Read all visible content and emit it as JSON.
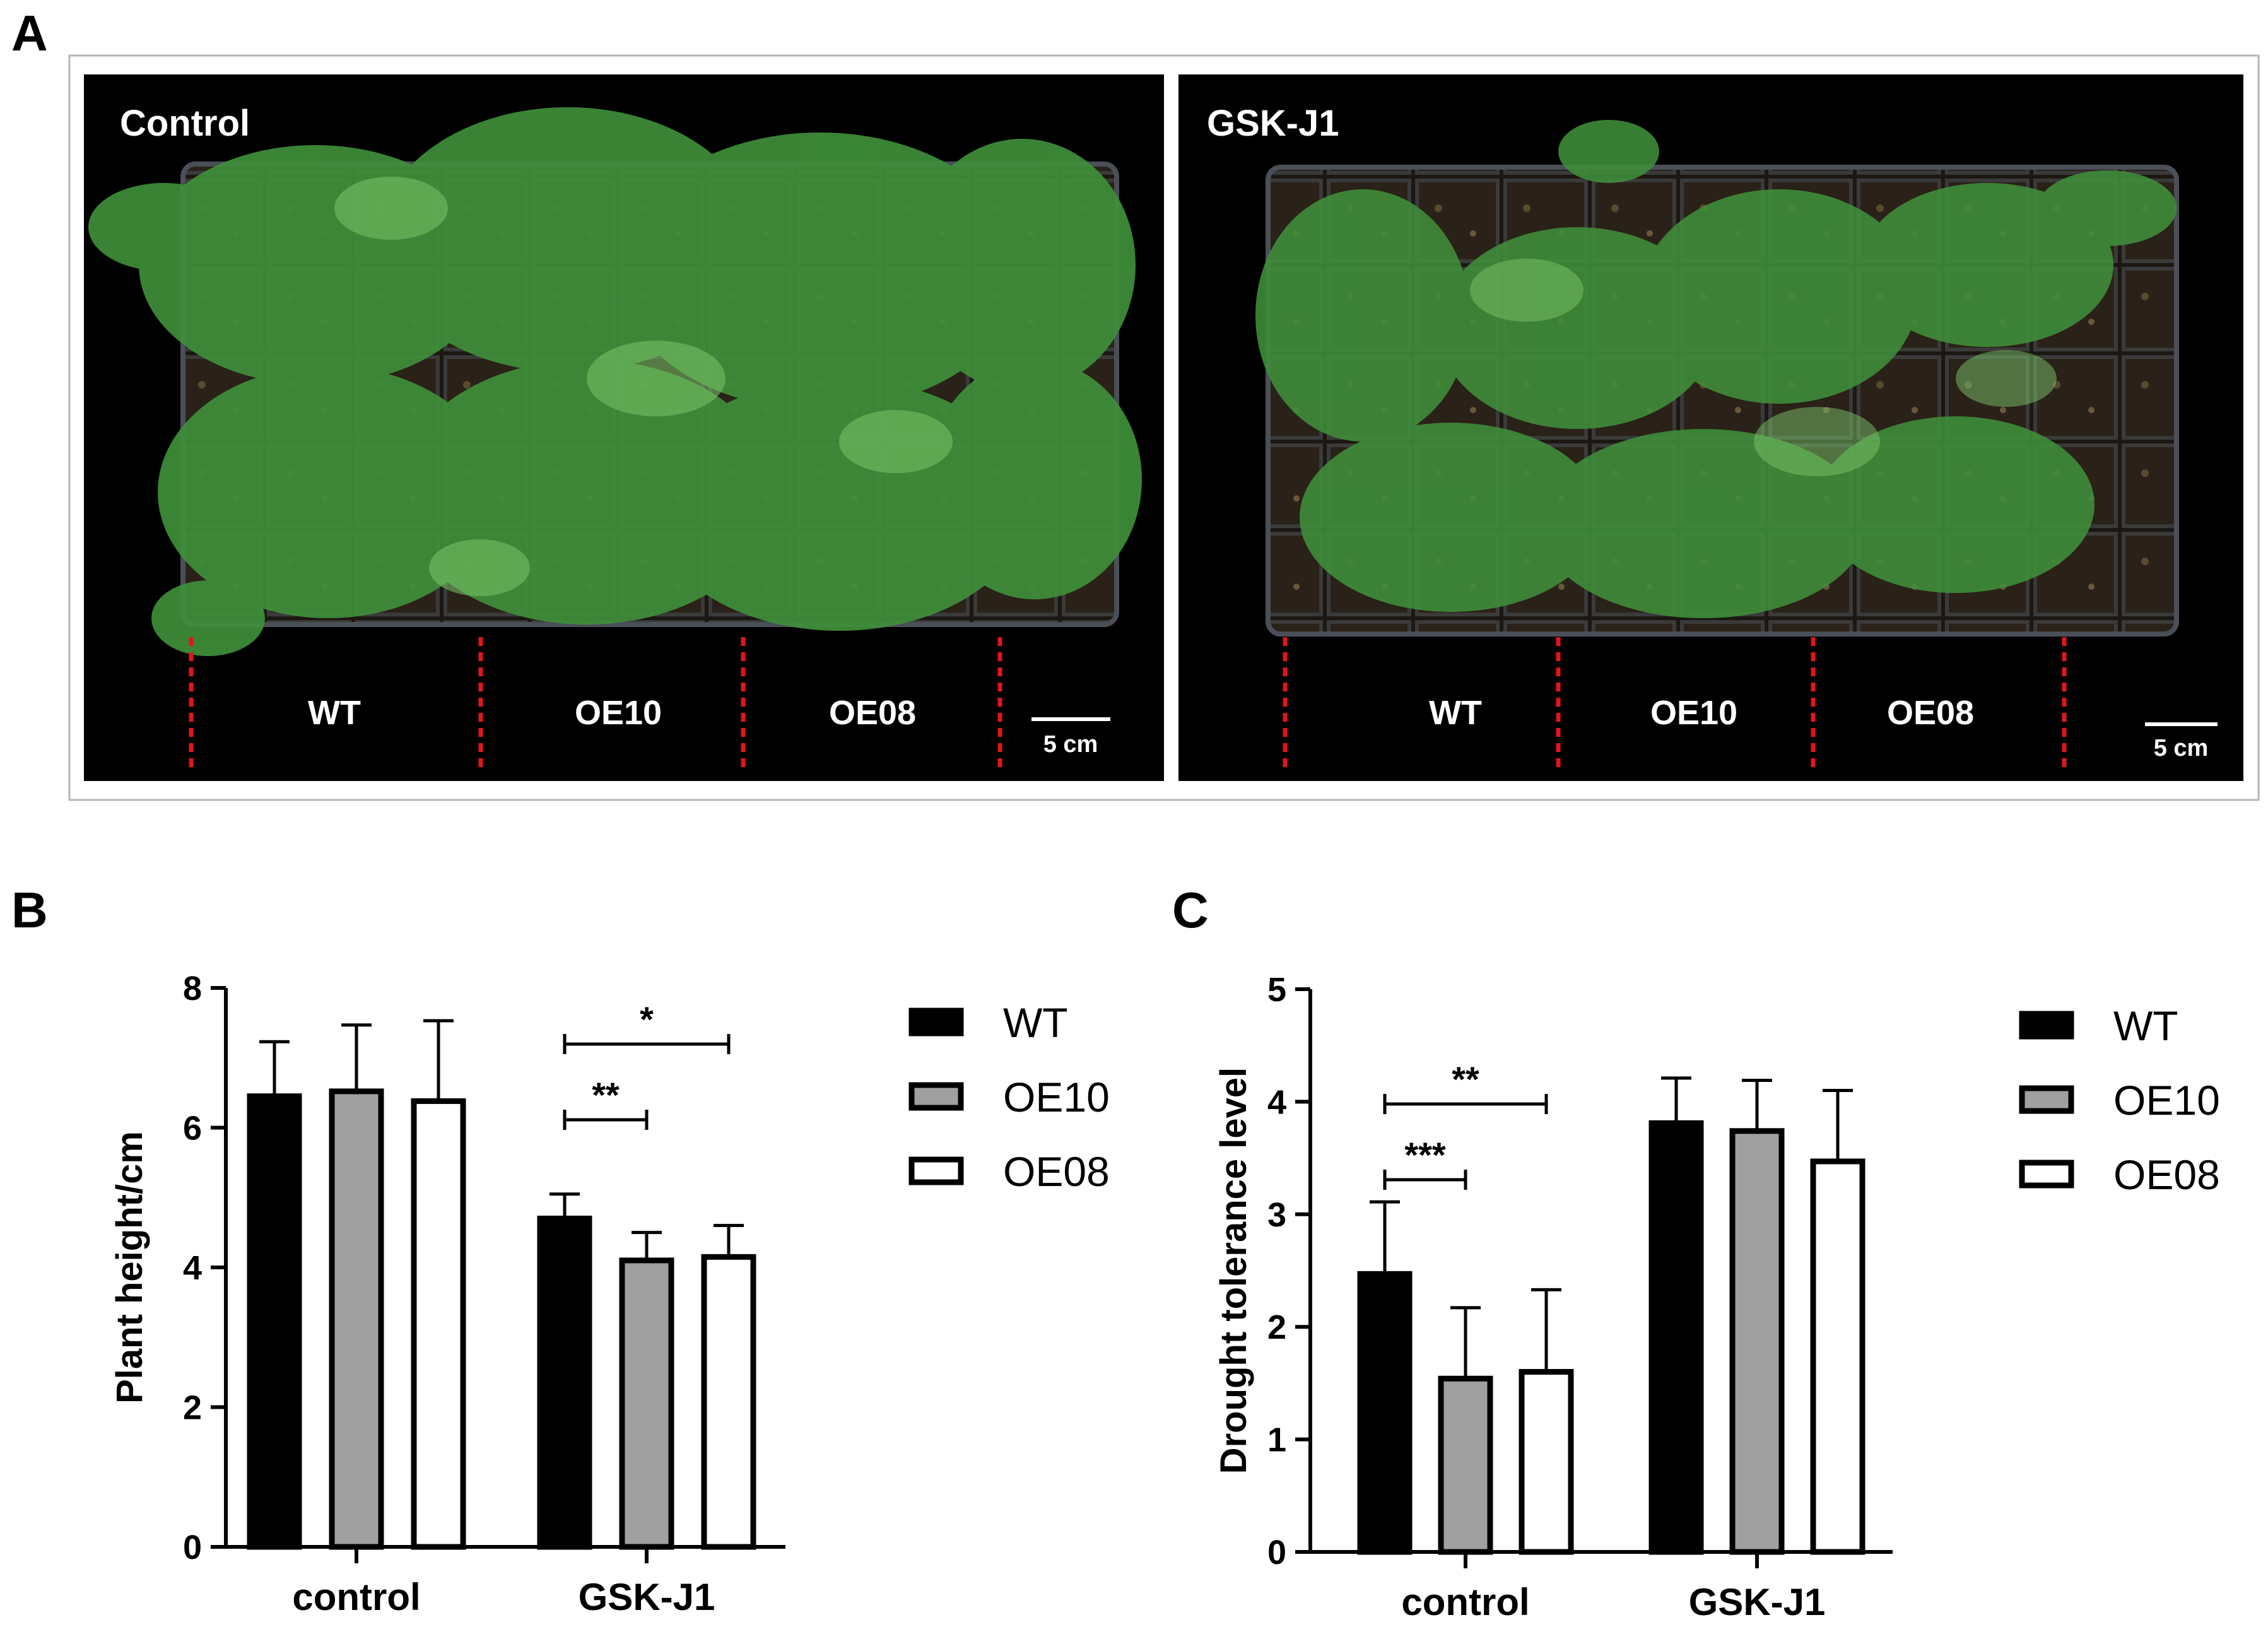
{
  "panels": {
    "a": "A",
    "b": "B",
    "c": "C"
  },
  "photos": [
    {
      "title": "Control",
      "genotypes": [
        "WT",
        "OE10",
        "OE08"
      ],
      "scale": "5 cm"
    },
    {
      "title": "GSK-J1",
      "genotypes": [
        "WT",
        "OE10",
        "OE08"
      ],
      "scale": "5 cm"
    }
  ],
  "colors": {
    "WT": "#000000",
    "OE10": "#a0a0a0",
    "OE08": "#ffffff",
    "photo_bg": "#000000",
    "divider": "#e0161b",
    "foliage": "#3f8f3a"
  },
  "chart_data": [
    {
      "type": "bar",
      "categories": [
        "control",
        "GSK-J1"
      ],
      "ylabel": "Plant height/cm",
      "ylim": [
        0,
        8
      ],
      "yticks": [
        "0",
        "2",
        "4",
        "6",
        "8"
      ],
      "legend": "right",
      "series": [
        {
          "name": "WT",
          "values": [
            6.45,
            4.7
          ],
          "errors": [
            0.78,
            0.35
          ]
        },
        {
          "name": "OE10",
          "values": [
            6.52,
            4.1
          ],
          "errors": [
            0.95,
            0.4
          ]
        },
        {
          "name": "OE08",
          "values": [
            6.38,
            4.15
          ],
          "errors": [
            1.15,
            0.45
          ]
        }
      ],
      "significance": [
        {
          "category": "GSK-J1",
          "from": "WT",
          "to": "OE10",
          "label": "**"
        },
        {
          "category": "GSK-J1",
          "from": "WT",
          "to": "OE08",
          "label": "*"
        }
      ]
    },
    {
      "type": "bar",
      "categories": [
        "control",
        "GSK-J1"
      ],
      "ylabel": "Drought tolerance level",
      "ylim": [
        0,
        5
      ],
      "yticks": [
        "0",
        "1",
        "2",
        "3",
        "4",
        "5"
      ],
      "legend": "right",
      "series": [
        {
          "name": "WT",
          "values": [
            2.47,
            3.81
          ],
          "errors": [
            0.64,
            0.4
          ]
        },
        {
          "name": "OE10",
          "values": [
            1.54,
            3.74
          ],
          "errors": [
            0.63,
            0.45
          ]
        },
        {
          "name": "OE08",
          "values": [
            1.6,
            3.47
          ],
          "errors": [
            0.73,
            0.63
          ]
        }
      ],
      "significance": [
        {
          "category": "control",
          "from": "WT",
          "to": "OE10",
          "label": "***"
        },
        {
          "category": "control",
          "from": "WT",
          "to": "OE08",
          "label": "**"
        }
      ]
    }
  ]
}
